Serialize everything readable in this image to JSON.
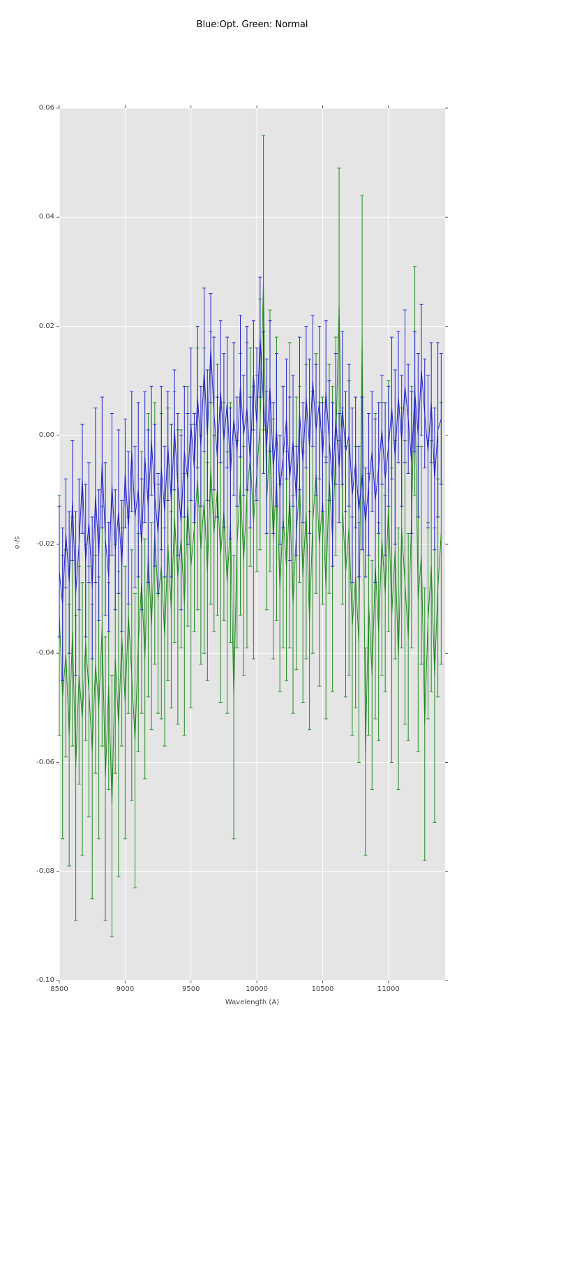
{
  "figure": {
    "title": "Blue:Opt. Green: Normal",
    "background": "#ffffff"
  },
  "axes": {
    "xlabel": "Wavelength (A)",
    "ylabel": "e-/s",
    "facecolor": "#e5e5e5",
    "grid_color": "#ffffff",
    "tick_color": "#555555",
    "label_color": "#444444",
    "x_tick_labels": [
      "8500",
      "9000",
      "9500",
      "10000",
      "10500",
      "11000"
    ],
    "y_tick_labels": [
      "0.06",
      "0.04",
      "0.02",
      "0.00",
      "-0.02",
      "-0.04",
      "-0.06",
      "-0.08",
      "-0.10"
    ]
  },
  "chart_data": {
    "type": "line",
    "subtype": "errorbar",
    "title": "Blue:Opt. Green: Normal",
    "xlabel": "Wavelength (A)",
    "ylabel": "e-/s",
    "xlim": [
      8500,
      11430
    ],
    "ylim": [
      -0.1,
      0.06
    ],
    "xticks": [
      8500,
      9000,
      9500,
      10000,
      10500,
      11000
    ],
    "yticks": [
      0.06,
      0.04,
      0.02,
      0,
      -0.02,
      -0.04,
      -0.06,
      -0.08,
      -0.1
    ],
    "grid": true,
    "legend": false,
    "x_start": 8500,
    "x_step": 25,
    "n_points": 117,
    "series": [
      {
        "name": "Opt",
        "color": "#2424cc",
        "style": "line_with_errorbars",
        "y": [
          -0.025,
          -0.031,
          -0.018,
          -0.027,
          -0.012,
          -0.029,
          -0.02,
          -0.008,
          -0.023,
          -0.016,
          -0.028,
          -0.011,
          -0.022,
          -0.005,
          -0.019,
          -0.026,
          -0.009,
          -0.021,
          -0.014,
          -0.024,
          -0.007,
          -0.017,
          -0.003,
          -0.015,
          -0.01,
          -0.02,
          -0.004,
          -0.013,
          -0.001,
          -0.011,
          -0.018,
          -0.006,
          -0.014,
          -0.002,
          -0.012,
          0.001,
          -0.009,
          -0.016,
          -0.003,
          -0.008,
          0.002,
          -0.006,
          0.007,
          -0.002,
          0.012,
          0.0,
          0.016,
          0.004,
          -0.004,
          0.008,
          -0.001,
          0.006,
          -0.007,
          0.003,
          -0.003,
          0.009,
          0.0,
          0.005,
          -0.005,
          0.011,
          0.002,
          0.018,
          0.006,
          -0.002,
          0.009,
          -0.006,
          0.001,
          -0.01,
          -0.004,
          0.003,
          -0.008,
          -0.001,
          -0.012,
          0.004,
          -0.005,
          0.007,
          -0.002,
          0.01,
          0.001,
          0.006,
          -0.004,
          0.008,
          -0.001,
          -0.009,
          0.003,
          -0.006,
          0.005,
          -0.003,
          0.0,
          -0.011,
          -0.005,
          -0.014,
          -0.007,
          -0.016,
          -0.009,
          -0.003,
          -0.012,
          -0.006,
          0.001,
          -0.008,
          -0.002,
          0.005,
          -0.004,
          0.007,
          -0.001,
          0.009,
          0.003,
          -0.005,
          0.008,
          0.0,
          0.012,
          0.004,
          -0.003,
          0.006,
          -0.008,
          0.001,
          0.003
        ],
        "yerr": [
          0.012,
          0.014,
          0.01,
          0.013,
          0.011,
          0.015,
          0.012,
          0.01,
          0.014,
          0.011,
          0.013,
          0.016,
          0.012,
          0.012,
          0.014,
          0.01,
          0.013,
          0.011,
          0.015,
          0.012,
          0.01,
          0.014,
          0.011,
          0.013,
          0.016,
          0.012,
          0.012,
          0.014,
          0.01,
          0.013,
          0.011,
          0.015,
          0.012,
          0.01,
          0.014,
          0.011,
          0.013,
          0.016,
          0.012,
          0.012,
          0.014,
          0.01,
          0.013,
          0.011,
          0.015,
          0.012,
          0.01,
          0.014,
          0.011,
          0.013,
          0.016,
          0.012,
          0.012,
          0.014,
          0.01,
          0.013,
          0.011,
          0.015,
          0.012,
          0.01,
          0.014,
          0.011,
          0.013,
          0.016,
          0.012,
          0.012,
          0.014,
          0.01,
          0.013,
          0.011,
          0.015,
          0.012,
          0.01,
          0.014,
          0.011,
          0.013,
          0.016,
          0.012,
          0.012,
          0.014,
          0.01,
          0.013,
          0.011,
          0.015,
          0.012,
          0.01,
          0.014,
          0.011,
          0.013,
          0.016,
          0.012,
          0.012,
          0.014,
          0.01,
          0.013,
          0.011,
          0.015,
          0.012,
          0.01,
          0.014,
          0.011,
          0.013,
          0.016,
          0.012,
          0.012,
          0.014,
          0.01,
          0.013,
          0.011,
          0.015,
          0.012,
          0.01,
          0.014,
          0.011,
          0.013,
          0.016,
          0.012
        ]
      },
      {
        "name": "Normal",
        "color": "#228b22",
        "style": "line_with_errorbars",
        "y": [
          -0.033,
          -0.048,
          -0.04,
          -0.055,
          -0.036,
          -0.061,
          -0.044,
          -0.052,
          -0.038,
          -0.047,
          -0.058,
          -0.042,
          -0.05,
          -0.035,
          -0.063,
          -0.046,
          -0.068,
          -0.041,
          -0.053,
          -0.037,
          -0.049,
          -0.033,
          -0.044,
          -0.056,
          -0.038,
          -0.027,
          -0.041,
          -0.022,
          -0.035,
          -0.018,
          -0.03,
          -0.024,
          -0.037,
          -0.02,
          -0.032,
          -0.015,
          -0.026,
          -0.019,
          -0.031,
          -0.013,
          -0.024,
          -0.017,
          -0.008,
          -0.021,
          -0.012,
          -0.025,
          -0.006,
          -0.018,
          -0.01,
          -0.022,
          -0.014,
          -0.027,
          -0.016,
          -0.048,
          -0.02,
          -0.009,
          -0.023,
          -0.011,
          -0.004,
          -0.016,
          -0.007,
          0.002,
          0.028,
          -0.012,
          -0.001,
          -0.019,
          -0.008,
          -0.028,
          -0.015,
          -0.024,
          -0.011,
          -0.031,
          -0.018,
          -0.009,
          -0.026,
          -0.014,
          -0.034,
          -0.016,
          -0.007,
          -0.02,
          -0.012,
          -0.028,
          -0.008,
          -0.019,
          -0.002,
          0.024,
          -0.013,
          -0.025,
          -0.017,
          -0.035,
          -0.026,
          -0.038,
          0.018,
          -0.058,
          -0.031,
          -0.044,
          -0.024,
          -0.036,
          -0.019,
          -0.029,
          -0.013,
          -0.033,
          -0.021,
          -0.041,
          -0.017,
          -0.027,
          -0.037,
          -0.015,
          0.01,
          -0.03,
          -0.022,
          -0.053,
          -0.034,
          -0.024,
          -0.044,
          -0.028,
          -0.018
        ],
        "yerr": [
          0.022,
          0.026,
          0.019,
          0.024,
          0.021,
          0.028,
          0.02,
          0.025,
          0.018,
          0.023,
          0.027,
          0.02,
          0.024,
          0.022,
          0.026,
          0.019,
          0.024,
          0.021,
          0.028,
          0.02,
          0.025,
          0.018,
          0.023,
          0.027,
          0.02,
          0.024,
          0.022,
          0.026,
          0.019,
          0.024,
          0.021,
          0.028,
          0.02,
          0.025,
          0.018,
          0.023,
          0.027,
          0.02,
          0.024,
          0.022,
          0.026,
          0.019,
          0.024,
          0.021,
          0.028,
          0.02,
          0.025,
          0.018,
          0.023,
          0.027,
          0.02,
          0.024,
          0.022,
          0.026,
          0.019,
          0.024,
          0.021,
          0.028,
          0.02,
          0.025,
          0.018,
          0.023,
          0.027,
          0.02,
          0.024,
          0.022,
          0.026,
          0.019,
          0.024,
          0.021,
          0.028,
          0.02,
          0.025,
          0.018,
          0.023,
          0.027,
          0.02,
          0.024,
          0.022,
          0.026,
          0.019,
          0.024,
          0.021,
          0.028,
          0.02,
          0.025,
          0.018,
          0.023,
          0.027,
          0.02,
          0.024,
          0.022,
          0.026,
          0.019,
          0.024,
          0.021,
          0.028,
          0.02,
          0.025,
          0.018,
          0.023,
          0.027,
          0.02,
          0.024,
          0.022,
          0.026,
          0.019,
          0.024,
          0.021,
          0.028,
          0.02,
          0.025,
          0.018,
          0.023,
          0.027,
          0.02,
          0.024
        ]
      }
    ]
  }
}
